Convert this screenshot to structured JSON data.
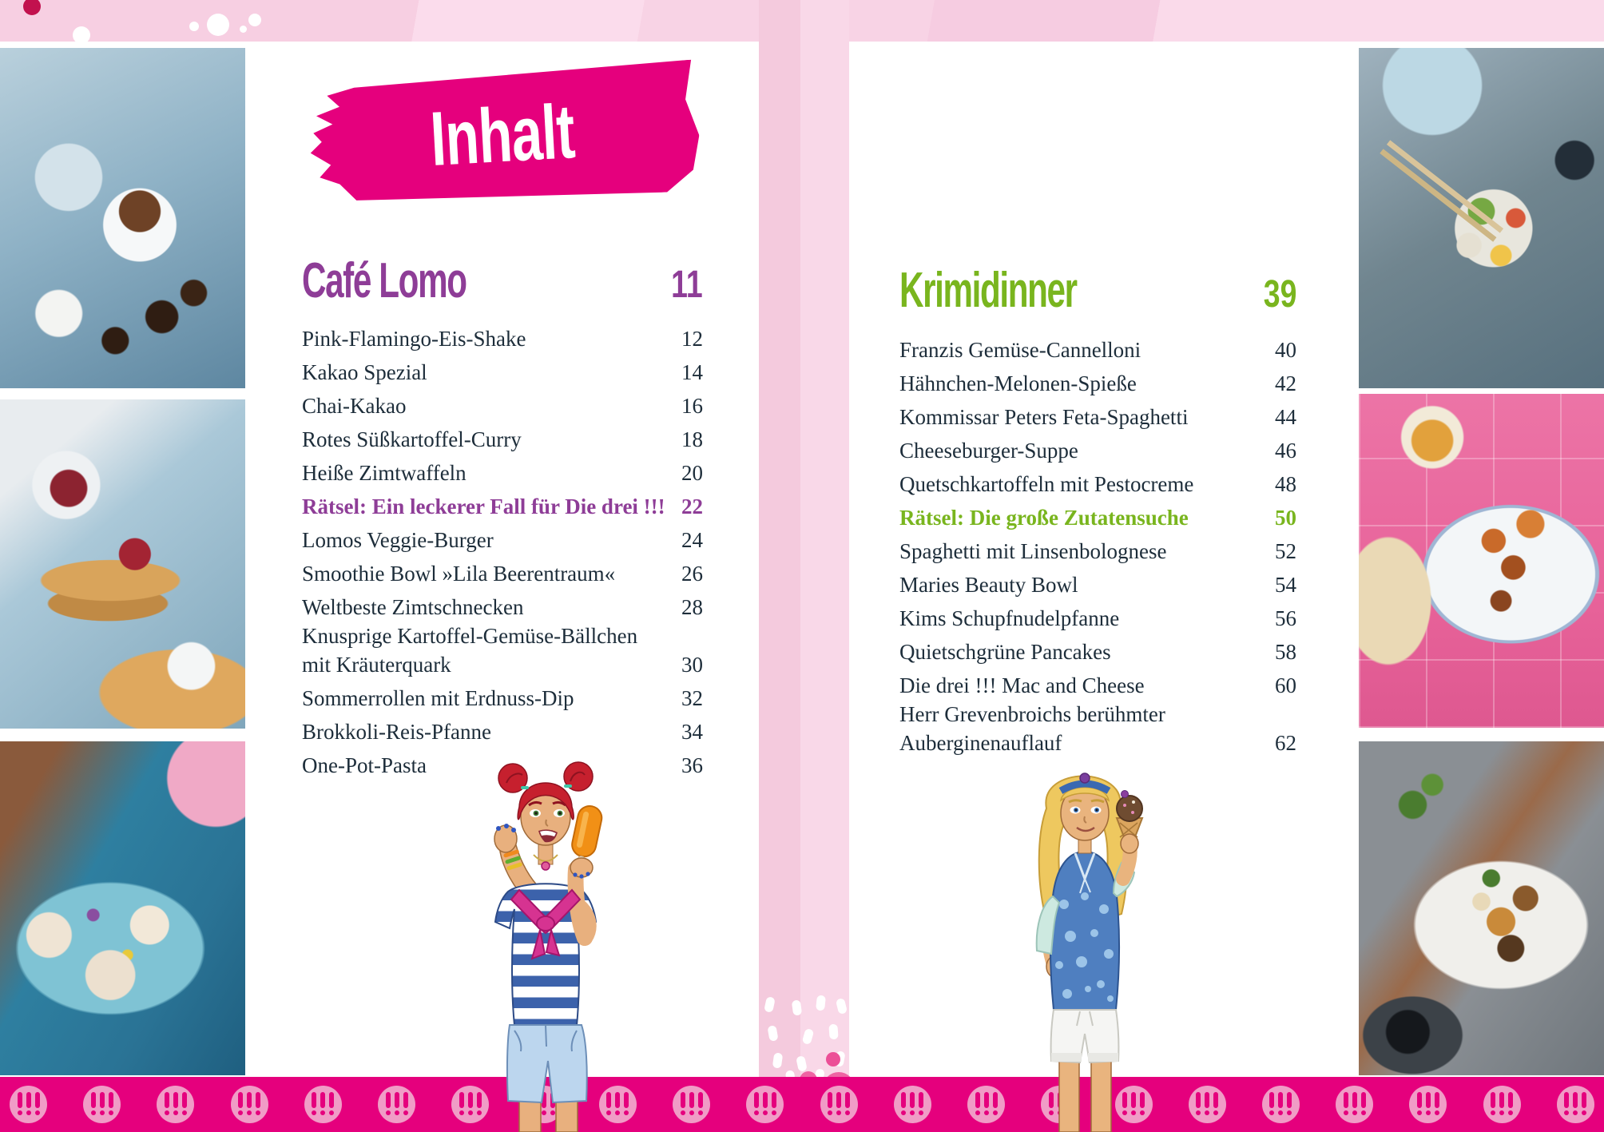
{
  "banner": {
    "title": "Inhalt"
  },
  "left_page": {
    "section_title": "Café Lomo",
    "section_page": "11",
    "items": [
      {
        "label": "Pink-Flamingo-Eis-Shake",
        "page": "12"
      },
      {
        "label": "Kakao Spezial",
        "page": "14"
      },
      {
        "label": "Chai-Kakao",
        "page": "16"
      },
      {
        "label": "Rotes Süßkartoffel-Curry",
        "page": "18"
      },
      {
        "label": "Heiße Zimtwaffeln",
        "page": "20"
      },
      {
        "label": "Rätsel: Ein leckerer Fall für Die drei !!!",
        "page": "22",
        "accent": true
      },
      {
        "label": "Lomos Veggie-Burger",
        "page": "24"
      },
      {
        "label": "Smoothie Bowl »Lila Beerentraum«",
        "page": "26"
      },
      {
        "label": "Weltbeste Zimtschnecken",
        "page": "28"
      },
      {
        "label": "Knusprige Kartoffel-Gemüse-Bällchen\nmit Kräuterquark",
        "page": "30"
      },
      {
        "label": "Sommerrollen mit Erdnuss-Dip",
        "page": "32"
      },
      {
        "label": "Brokkoli-Reis-Pfanne",
        "page": "34"
      },
      {
        "label": "One-Pot-Pasta",
        "page": "36"
      }
    ]
  },
  "right_page": {
    "section_title": "Krimidinner",
    "section_page": "39",
    "items": [
      {
        "label": "Franzis Gemüse-Cannelloni",
        "page": "40"
      },
      {
        "label": "Hähnchen-Melonen-Spieße",
        "page": "42"
      },
      {
        "label": "Kommissar Peters Feta-Spaghetti",
        "page": "44"
      },
      {
        "label": "Cheeseburger-Suppe",
        "page": "46"
      },
      {
        "label": "Quetschkartoffeln mit Pestocreme",
        "page": "48"
      },
      {
        "label": "Rätsel: Die große Zutatensuche",
        "page": "50",
        "accent": true
      },
      {
        "label": "Spaghetti mit Linsenbolognese",
        "page": "52"
      },
      {
        "label": "Maries Beauty Bowl",
        "page": "54"
      },
      {
        "label": "Kims Schupfnudelpfanne",
        "page": "56"
      },
      {
        "label": "Quietschgrüne Pancakes",
        "page": "58"
      },
      {
        "label": "Die drei !!! Mac and Cheese",
        "page": "60"
      },
      {
        "label": "Herr Grevenbroichs berühmter\nAuberginenauflauf",
        "page": "62"
      }
    ]
  },
  "footer": {
    "stamp_count": 22,
    "stamp_glyph": "!!!"
  },
  "photos": [
    {
      "name": "hot-chocolate-mugs"
    },
    {
      "name": "waffles-with-cherries"
    },
    {
      "name": "summer-rolls"
    },
    {
      "name": "veggie-bowl"
    },
    {
      "name": "grilled-skewers"
    },
    {
      "name": "roasted-vegetable-bowl"
    }
  ],
  "illustrations": [
    {
      "name": "girl-red-hair-popsicle"
    },
    {
      "name": "girl-blonde-ice-cream"
    }
  ],
  "colors": {
    "magenta": "#e5007d",
    "purple": "#8e3d97",
    "green": "#79b51e",
    "ink": "#1d2d3a",
    "pink_bg": "#f8d2e4"
  }
}
